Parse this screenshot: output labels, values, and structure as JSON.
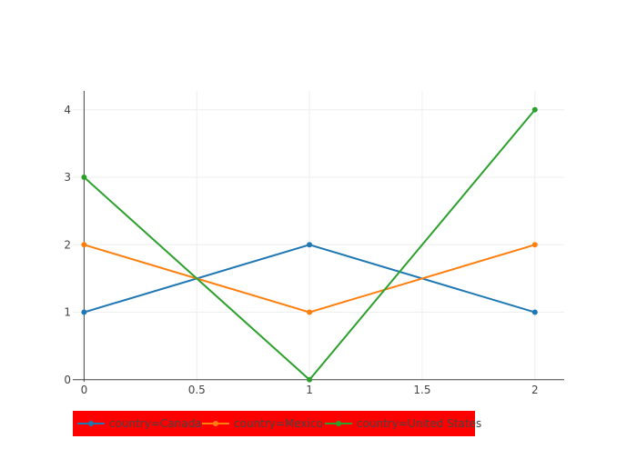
{
  "chart_data": {
    "type": "line",
    "x": [
      0,
      1,
      2
    ],
    "series": [
      {
        "name": "country=Canada",
        "values": [
          1,
          2,
          1
        ],
        "color": "#1f77b4"
      },
      {
        "name": "country=Mexico",
        "values": [
          2,
          1,
          2
        ],
        "color": "#ff7f0e"
      },
      {
        "name": "country=United States",
        "values": [
          3,
          0,
          4
        ],
        "color": "#2ca02c"
      }
    ],
    "xlim": [
      -0.05,
      2.13
    ],
    "ylim": [
      -0.03,
      4.28
    ],
    "xticks": [
      0,
      0.5,
      1,
      1.5,
      2
    ],
    "xtick_labels": [
      "0",
      "0.5",
      "1",
      "1.5",
      "2"
    ],
    "yticks": [
      0,
      1,
      2,
      3,
      4
    ],
    "ytick_labels": [
      "0",
      "1",
      "2",
      "3",
      "4"
    ],
    "grid": true,
    "legend_position": "bottom-left",
    "legend_background": "#ff0000",
    "title": "",
    "xlabel": "",
    "ylabel": ""
  }
}
